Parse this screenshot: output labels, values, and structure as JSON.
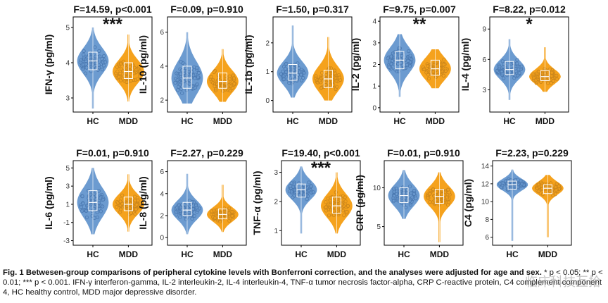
{
  "colors": {
    "hc": "#6c9bd0",
    "mdd": "#f5a21d",
    "hc_point": "#4a78b0",
    "mdd_point": "#c9851c",
    "frame": "#000000"
  },
  "chart_data": [
    {
      "type": "violin",
      "ylabel": "IFN-γ (pg/ml)",
      "stat": "F=14.59, p<0.001",
      "sig": "***",
      "categories": [
        "HC",
        "MDD"
      ],
      "yticks": [
        3,
        4,
        5
      ],
      "ylim": [
        2.6,
        5.3
      ],
      "series": [
        {
          "name": "HC",
          "median": 4.05,
          "q1": 3.8,
          "q3": 4.3,
          "min": 2.7,
          "max": 5.0
        },
        {
          "name": "MDD",
          "median": 3.75,
          "q1": 3.55,
          "q3": 4.0,
          "min": 2.9,
          "max": 4.8
        }
      ]
    },
    {
      "type": "violin",
      "ylabel": "IL-10 (pg/ml)",
      "stat": "F=0.09, p=0.910",
      "sig": "",
      "categories": [
        "HC",
        "MDD"
      ],
      "yticks": [
        2,
        4,
        6
      ],
      "ylim": [
        1.3,
        6.9
      ],
      "series": [
        {
          "name": "HC",
          "median": 3.3,
          "q1": 2.7,
          "q3": 4.0,
          "min": 1.8,
          "max": 6.0
        },
        {
          "name": "MDD",
          "median": 3.1,
          "q1": 2.7,
          "q3": 3.6,
          "min": 1.9,
          "max": 5.0
        }
      ]
    },
    {
      "type": "violin",
      "ylabel": "IL-1b (pg/ml)",
      "stat": "F=1.50, p=0.317",
      "sig": "",
      "categories": [
        "HC",
        "MDD"
      ],
      "yticks": [
        0,
        1,
        2
      ],
      "ylim": [
        -0.4,
        2.9
      ],
      "series": [
        {
          "name": "HC",
          "median": 0.95,
          "q1": 0.7,
          "q3": 1.25,
          "min": 0.1,
          "max": 2.6
        },
        {
          "name": "MDD",
          "median": 0.75,
          "q1": 0.45,
          "q3": 1.05,
          "min": 0.0,
          "max": 2.2
        }
      ]
    },
    {
      "type": "violin",
      "ylabel": "IL-2 (pg/ml)",
      "stat": "F=9.75, p=0.007",
      "sig": "**",
      "categories": [
        "HC",
        "MDD"
      ],
      "yticks": [
        0,
        1,
        2,
        3,
        4
      ],
      "ylim": [
        -0.2,
        4.2
      ],
      "series": [
        {
          "name": "HC",
          "median": 2.2,
          "q1": 1.8,
          "q3": 2.6,
          "min": 0.5,
          "max": 3.4
        },
        {
          "name": "MDD",
          "median": 1.8,
          "q1": 1.5,
          "q3": 2.2,
          "min": 0.9,
          "max": 2.7
        }
      ]
    },
    {
      "type": "violin",
      "ylabel": "IL-4 (pg/ml)",
      "stat": "F=8.22, p=0.012",
      "sig": "*",
      "categories": [
        "HC",
        "MDD"
      ],
      "yticks": [
        3,
        6,
        9
      ],
      "ylim": [
        0.8,
        10.2
      ],
      "series": [
        {
          "name": "HC",
          "median": 5.0,
          "q1": 4.5,
          "q3": 5.8,
          "min": 2.0,
          "max": 8.0
        },
        {
          "name": "MDD",
          "median": 4.3,
          "q1": 3.9,
          "q3": 4.9,
          "min": 2.8,
          "max": 7.2
        }
      ]
    },
    {
      "type": "violin",
      "ylabel": "IL-6 (pg/ml)",
      "stat": "F=0.01, p=0.910",
      "sig": "",
      "categories": [
        "HC",
        "MDD"
      ],
      "yticks": [
        -3,
        -1,
        1,
        3,
        5
      ],
      "ylim": [
        -3.5,
        5.8
      ],
      "series": [
        {
          "name": "HC",
          "median": 1.2,
          "q1": 0.3,
          "q3": 2.5,
          "min": -2.3,
          "max": 5.0
        },
        {
          "name": "MDD",
          "median": 1.0,
          "q1": 0.3,
          "q3": 1.8,
          "min": -2.0,
          "max": 4.3
        }
      ]
    },
    {
      "type": "violin",
      "ylabel": "IL-8 (pg/ml)",
      "stat": "F=2.27, p=0.229",
      "sig": "",
      "categories": [
        "HC",
        "MDD"
      ],
      "yticks": [
        0,
        2,
        4,
        6
      ],
      "ylim": [
        -0.7,
        7.0
      ],
      "series": [
        {
          "name": "HC",
          "median": 2.5,
          "q1": 2.0,
          "q3": 3.2,
          "min": 0.3,
          "max": 5.8
        },
        {
          "name": "MDD",
          "median": 2.1,
          "q1": 1.7,
          "q3": 2.6,
          "min": 0.5,
          "max": 4.8
        }
      ]
    },
    {
      "type": "violin",
      "ylabel": "TNF-α (pg/ml)",
      "stat": "F=19.40, p<0.001",
      "sig": "***",
      "categories": [
        "HC",
        "MDD"
      ],
      "yticks": [
        1,
        2,
        3
      ],
      "ylim": [
        0.5,
        3.4
      ],
      "series": [
        {
          "name": "HC",
          "median": 2.4,
          "q1": 2.15,
          "q3": 2.6,
          "min": 0.9,
          "max": 3.2
        },
        {
          "name": "MDD",
          "median": 1.85,
          "q1": 1.6,
          "q3": 2.15,
          "min": 0.9,
          "max": 3.0
        }
      ]
    },
    {
      "type": "violin",
      "ylabel": "CRP (pg/ml)",
      "stat": "F=0.01, p=0.910",
      "sig": "",
      "categories": [
        "HC",
        "MDD"
      ],
      "yticks": [
        5,
        10
      ],
      "ylim": [
        2.6,
        13.5
      ],
      "series": [
        {
          "name": "HC",
          "median": 9.0,
          "q1": 8.1,
          "q3": 10.0,
          "min": 6.0,
          "max": 12.3
        },
        {
          "name": "MDD",
          "median": 8.9,
          "q1": 8.0,
          "q3": 9.8,
          "min": 3.0,
          "max": 12.0
        }
      ]
    },
    {
      "type": "violin",
      "ylabel": "C4 (pg/ml)",
      "stat": "F=2.23, p=0.229",
      "sig": "",
      "categories": [
        "HC",
        "MDD"
      ],
      "yticks": [
        6,
        8,
        10,
        12,
        14
      ],
      "ylim": [
        5.1,
        14.6
      ],
      "series": [
        {
          "name": "HC",
          "median": 11.9,
          "q1": 11.4,
          "q3": 12.3,
          "min": 5.6,
          "max": 13.6
        },
        {
          "name": "MDD",
          "median": 11.5,
          "q1": 10.9,
          "q3": 11.9,
          "min": 6.0,
          "max": 13.0
        }
      ]
    }
  ],
  "caption": {
    "bold": "Fig. 1   Betwesen-group comparisons of peripheral cytokine levels with Bonferroni correction, and the analyses were adjusted for age and sex.",
    "rest": " * p < 0.05; ** p < 0.01; *** p < 0.001. IFN-γ interferon-gamma, IL-2 interleukin-2, IL-4 interleukin-4, TNF-α tumor necrosis factor-alpha, CRP C-reactive protein, C4 complement component 4, HC healthy control, MDD major depressive disorder."
  },
  "watermark": "临床科技互拾"
}
